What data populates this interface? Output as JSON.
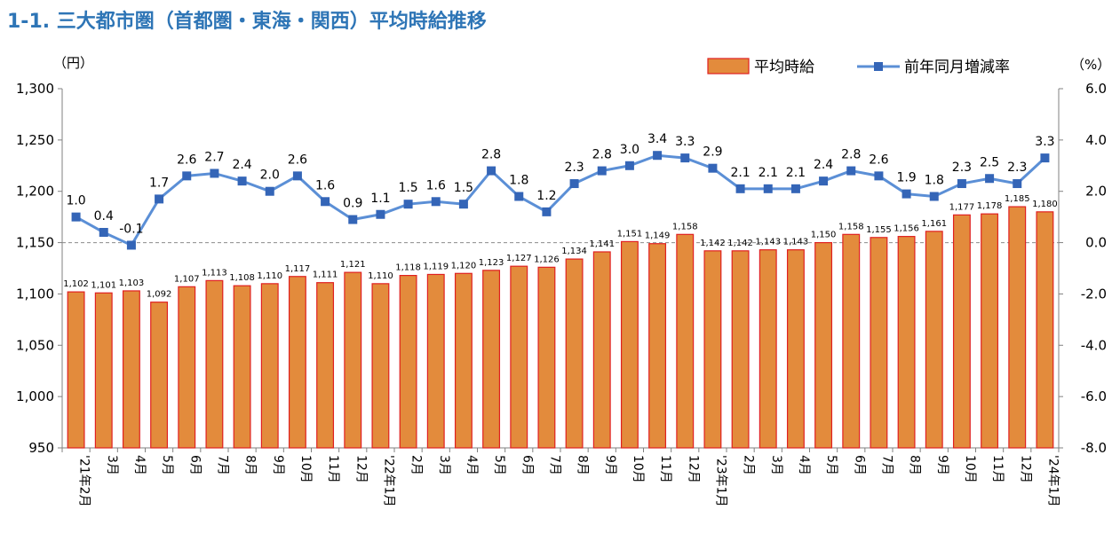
{
  "chart_data": {
    "type": "bar+line",
    "title": "1-1. 三大都市圏（首都圏・東海・関西）平均時給推移",
    "y_unit_left": "（円）",
    "y_unit_right": "（%）",
    "ylim_left": [
      950,
      1300
    ],
    "ylim_right": [
      -8.0,
      6.0
    ],
    "yticks_left": [
      "1,300",
      "1,250",
      "1,200",
      "1,150",
      "1,100",
      "1,050",
      "1,000",
      "950"
    ],
    "yticks_right": [
      "6.0",
      "4.0",
      "2.0",
      "0.0",
      "-2.0",
      "-4.0",
      "-6.0",
      "-8.0"
    ],
    "categories": [
      "'21年2月",
      "3月",
      "4月",
      "5月",
      "6月",
      "7月",
      "8月",
      "9月",
      "10月",
      "11月",
      "12月",
      "'22年1月",
      "2月",
      "3月",
      "4月",
      "5月",
      "6月",
      "7月",
      "8月",
      "9月",
      "10月",
      "11月",
      "12月",
      "'23年1月",
      "2月",
      "3月",
      "4月",
      "5月",
      "6月",
      "7月",
      "8月",
      "9月",
      "10月",
      "11月",
      "12月",
      "'24年1月"
    ],
    "series": [
      {
        "name": "平均時給",
        "axis": "left",
        "color": "#e38b3c",
        "values": [
          1102,
          1101,
          1103,
          1092,
          1107,
          1113,
          1108,
          1110,
          1117,
          1111,
          1121,
          1110,
          1118,
          1119,
          1120,
          1123,
          1127,
          1126,
          1134,
          1141,
          1151,
          1149,
          1158,
          1142,
          1142,
          1143,
          1143,
          1150,
          1158,
          1155,
          1156,
          1161,
          1177,
          1178,
          1185,
          1180
        ],
        "labels": [
          "1,102",
          "1,101",
          "1,103",
          "1,092",
          "1,107",
          "1,113",
          "1,108",
          "1,110",
          "1,117",
          "1,111",
          "1,121",
          "1,110",
          "1,118",
          "1,119",
          "1,120",
          "1,123",
          "1,127",
          "1,126",
          "1,134",
          "1,141",
          "1,151",
          "1,149",
          "1,158",
          "1,142",
          "1,142",
          "1,143",
          "1,143",
          "1,150",
          "1,158",
          "1,155",
          "1,156",
          "1,161",
          "1,177",
          "1,178",
          "1,185",
          "1,180"
        ]
      },
      {
        "name": "前年同月増減率",
        "axis": "right",
        "color": "#5b8fd6",
        "values": [
          1.0,
          0.4,
          -0.1,
          1.7,
          2.6,
          2.7,
          2.4,
          2.0,
          2.6,
          1.6,
          0.9,
          1.1,
          1.5,
          1.6,
          1.5,
          2.8,
          1.8,
          1.2,
          2.3,
          2.8,
          3.0,
          3.4,
          3.3,
          2.9,
          2.1,
          2.1,
          2.1,
          2.4,
          2.8,
          2.6,
          1.9,
          1.8,
          2.3,
          2.5,
          2.3,
          3.3
        ],
        "labels": [
          "1.0",
          "0.4",
          "-0.1",
          "1.7",
          "2.6",
          "2.7",
          "2.4",
          "2.0",
          "2.6",
          "1.6",
          "0.9",
          "1.1",
          "1.5",
          "1.6",
          "1.5",
          "2.8",
          "1.8",
          "1.2",
          "2.3",
          "2.8",
          "3.0",
          "3.4",
          "3.3",
          "2.9",
          "2.1",
          "2.1",
          "2.1",
          "2.4",
          "2.8",
          "2.6",
          "1.9",
          "1.8",
          "2.3",
          "2.5",
          "2.3",
          "3.3"
        ]
      }
    ],
    "legend_position": "top-right",
    "grid": false
  }
}
